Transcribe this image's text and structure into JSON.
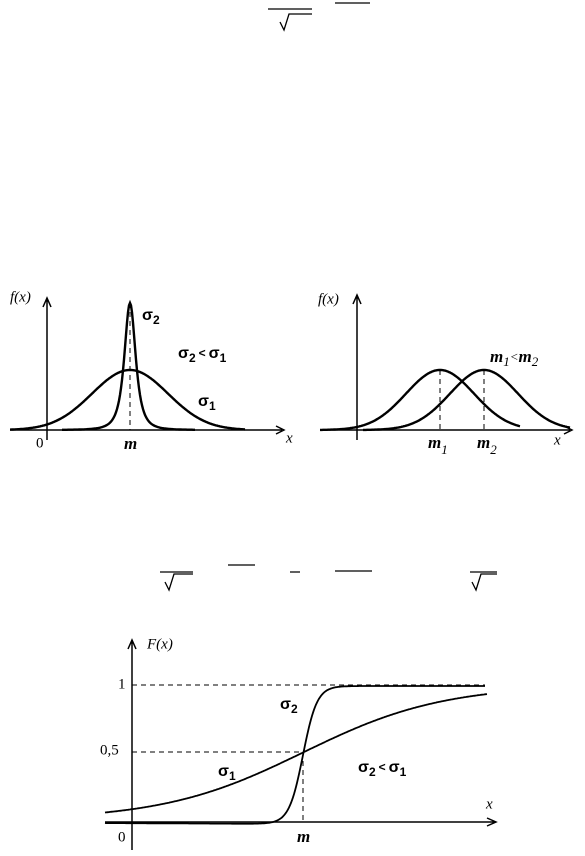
{
  "density_plots": {
    "left": {
      "y_label": "f(x)",
      "narrow_curve": {
        "symbol": "σ",
        "index": "2"
      },
      "relation": {
        "left_symbol": "σ",
        "left_index": "2",
        "sign": "<",
        "right_symbol": "σ",
        "right_index": "1"
      },
      "wide_curve": {
        "symbol": "σ",
        "index": "1"
      },
      "origin": "0",
      "center": "m",
      "x_label": "x"
    },
    "right": {
      "y_label": "f(x)",
      "relation": {
        "left_symbol": "m",
        "left_index": "1",
        "sign": "<",
        "right_symbol": "m",
        "right_index": "2"
      },
      "first_center": {
        "symbol": "m",
        "index": "1"
      },
      "second_center": {
        "symbol": "m",
        "index": "2"
      },
      "x_label": "x"
    }
  },
  "distribution_plot": {
    "y_label": "F(x)",
    "level_one": "1",
    "level_half": "0,5",
    "steep_curve": {
      "symbol": "σ",
      "index": "2"
    },
    "gentle_curve": {
      "symbol": "σ",
      "index": "1"
    },
    "relation": {
      "left_symbol": "σ",
      "left_index": "2",
      "sign": "<",
      "right_symbol": "σ",
      "right_index": "1"
    },
    "x_label": "x",
    "origin": "0",
    "center": "m"
  }
}
